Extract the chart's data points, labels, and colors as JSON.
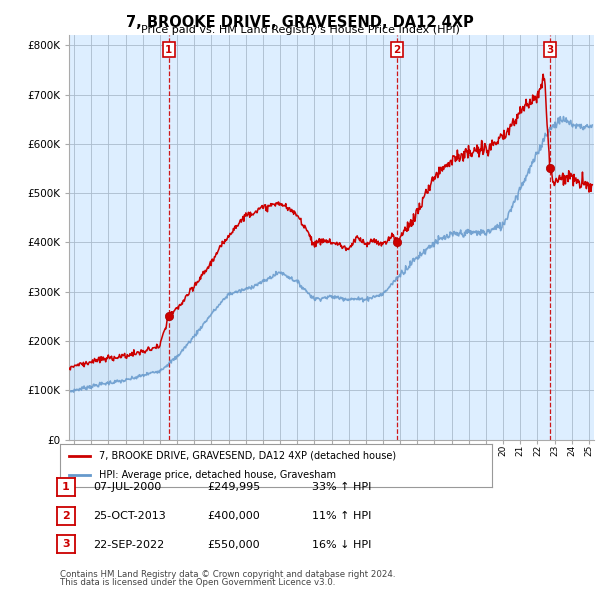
{
  "title": "7, BROOKE DRIVE, GRAVESEND, DA12 4XP",
  "subtitle": "Price paid vs. HM Land Registry's House Price Index (HPI)",
  "background_color": "#ffffff",
  "plot_bg_color": "#ddeeff",
  "grid_color": "#bbccdd",
  "line1_color": "#cc0000",
  "line2_color": "#6699cc",
  "fill_color": "#cce0f5",
  "transactions": [
    {
      "num": 1,
      "date_x": 2000.52,
      "price": 249995,
      "date_str": "07-JUL-2000",
      "price_str": "£249,995",
      "pct_str": "33% ↑ HPI"
    },
    {
      "num": 2,
      "date_x": 2013.82,
      "price": 400000,
      "date_str": "25-OCT-2013",
      "price_str": "£400,000",
      "pct_str": "11% ↑ HPI"
    },
    {
      "num": 3,
      "date_x": 2022.73,
      "price": 550000,
      "date_str": "22-SEP-2022",
      "price_str": "£550,000",
      "pct_str": "16% ↓ HPI"
    }
  ],
  "legend_line1": "7, BROOKE DRIVE, GRAVESEND, DA12 4XP (detached house)",
  "legend_line2": "HPI: Average price, detached house, Gravesham",
  "footer1": "Contains HM Land Registry data © Crown copyright and database right 2024.",
  "footer2": "This data is licensed under the Open Government Licence v3.0.",
  "ylim": [
    0,
    820000
  ],
  "xlim_start": 1994.7,
  "xlim_end": 2025.3,
  "yticks": [
    0,
    100000,
    200000,
    300000,
    400000,
    500000,
    600000,
    700000,
    800000
  ],
  "ytick_labels": [
    "£0",
    "£100K",
    "£200K",
    "£300K",
    "£400K",
    "£500K",
    "£600K",
    "£700K",
    "£800K"
  ],
  "hpi_keypoints": [
    [
      1994.7,
      97000
    ],
    [
      1995,
      100000
    ],
    [
      1996,
      108000
    ],
    [
      1997,
      115000
    ],
    [
      1998,
      120000
    ],
    [
      1999,
      130000
    ],
    [
      2000,
      140000
    ],
    [
      2001,
      168000
    ],
    [
      2002,
      210000
    ],
    [
      2003,
      255000
    ],
    [
      2004,
      295000
    ],
    [
      2005,
      305000
    ],
    [
      2006,
      320000
    ],
    [
      2007,
      340000
    ],
    [
      2008,
      320000
    ],
    [
      2009,
      285000
    ],
    [
      2010,
      290000
    ],
    [
      2011,
      285000
    ],
    [
      2012,
      285000
    ],
    [
      2013,
      295000
    ],
    [
      2014,
      335000
    ],
    [
      2015,
      370000
    ],
    [
      2016,
      400000
    ],
    [
      2017,
      415000
    ],
    [
      2018,
      420000
    ],
    [
      2019,
      420000
    ],
    [
      2020,
      435000
    ],
    [
      2021,
      510000
    ],
    [
      2022,
      580000
    ],
    [
      2022.5,
      620000
    ],
    [
      2023,
      640000
    ],
    [
      2023.5,
      650000
    ],
    [
      2024,
      640000
    ],
    [
      2024.5,
      635000
    ],
    [
      2025,
      635000
    ]
  ],
  "red_keypoints": [
    [
      1994.7,
      145000
    ],
    [
      1995,
      150000
    ],
    [
      1996,
      158000
    ],
    [
      1997,
      165000
    ],
    [
      1998,
      170000
    ],
    [
      1999,
      178000
    ],
    [
      2000,
      190000
    ],
    [
      2000.52,
      249995
    ],
    [
      2001,
      265000
    ],
    [
      2002,
      310000
    ],
    [
      2003,
      360000
    ],
    [
      2004,
      415000
    ],
    [
      2005,
      455000
    ],
    [
      2006,
      470000
    ],
    [
      2007,
      480000
    ],
    [
      2008,
      455000
    ],
    [
      2008.5,
      430000
    ],
    [
      2009,
      395000
    ],
    [
      2009.5,
      405000
    ],
    [
      2010,
      400000
    ],
    [
      2010.5,
      395000
    ],
    [
      2011,
      385000
    ],
    [
      2011.5,
      410000
    ],
    [
      2012,
      395000
    ],
    [
      2012.5,
      405000
    ],
    [
      2013,
      395000
    ],
    [
      2013.5,
      415000
    ],
    [
      2013.82,
      400000
    ],
    [
      2014,
      410000
    ],
    [
      2015,
      460000
    ],
    [
      2016,
      535000
    ],
    [
      2017,
      570000
    ],
    [
      2018,
      580000
    ],
    [
      2019,
      590000
    ],
    [
      2020,
      610000
    ],
    [
      2021,
      665000
    ],
    [
      2022,
      700000
    ],
    [
      2022.4,
      740000
    ],
    [
      2022.73,
      550000
    ],
    [
      2023,
      520000
    ],
    [
      2023.5,
      535000
    ],
    [
      2024,
      530000
    ],
    [
      2024.5,
      520000
    ],
    [
      2025,
      515000
    ]
  ]
}
